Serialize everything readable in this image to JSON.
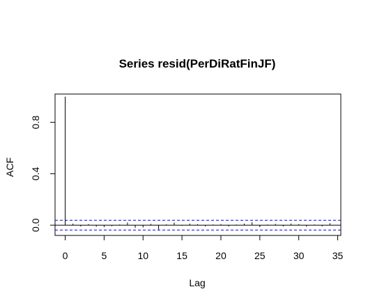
{
  "chart_data": {
    "type": "bar",
    "title": "Series  resid(PerDiRatFinJF)",
    "xlabel": "Lag",
    "ylabel": "ACF",
    "xlim": [
      -1.3,
      35.4
    ],
    "ylim": [
      -0.08,
      1.02
    ],
    "x_ticks": [
      0,
      5,
      10,
      15,
      20,
      25,
      30,
      35
    ],
    "y_ticks": [
      0.0,
      0.4,
      0.8
    ],
    "y_tick_labels": [
      "0.0",
      "0.4",
      "0.8"
    ],
    "grid": false,
    "confidence_bound": 0.038,
    "lags": [
      0,
      1,
      2,
      3,
      4,
      5,
      6,
      7,
      8,
      9,
      10,
      11,
      12,
      13,
      14,
      15,
      16,
      17,
      18,
      19,
      20,
      21,
      22,
      23,
      24,
      25,
      26,
      27,
      28,
      29,
      30,
      31,
      32,
      33,
      34
    ],
    "acf": [
      1.0,
      0.012,
      -0.01,
      0.008,
      -0.012,
      -0.015,
      -0.008,
      0.005,
      0.02,
      -0.02,
      -0.018,
      0.01,
      -0.035,
      0.006,
      0.02,
      -0.005,
      0.012,
      0.008,
      -0.01,
      0.005,
      0.008,
      -0.01,
      0.005,
      0.012,
      0.022,
      -0.015,
      0.005,
      0.01,
      -0.01,
      0.012,
      0.008,
      -0.012,
      0.005,
      -0.01,
      0.015
    ],
    "colors": {
      "ci_line": "#0000ff",
      "bars": "#000000"
    }
  }
}
